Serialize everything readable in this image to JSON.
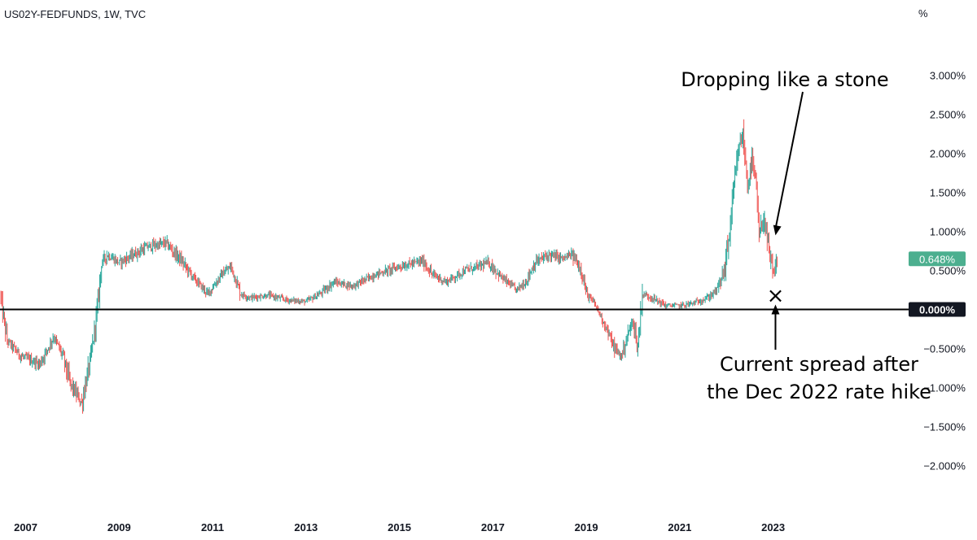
{
  "header": {
    "title": "US02Y-FEDFUNDS, 1W, TVC"
  },
  "chart_data": {
    "type": "candlestick",
    "title": "US02Y-FEDFUNDS, 1W, TVC",
    "unit_label": "%",
    "y_ticks": [
      3.0,
      2.5,
      2.0,
      1.5,
      1.0,
      0.5,
      -0.5,
      -1.0,
      -1.5,
      -2.0
    ],
    "y_tick_labels": [
      "3.000%",
      "2.500%",
      "2.000%",
      "1.500%",
      "1.000%",
      "0.500%",
      "−0.500%",
      "−1.000%",
      "−1.500%",
      "−2.000%"
    ],
    "x_ticks": [
      2007,
      2009,
      2011,
      2013,
      2015,
      2017,
      2019,
      2021,
      2023
    ],
    "x_tick_labels": [
      "2007",
      "2009",
      "2011",
      "2013",
      "2015",
      "2017",
      "2019",
      "2021",
      "2023"
    ],
    "x_range": [
      2006.45,
      2025.9
    ],
    "y_range": [
      -2.55,
      3.55
    ],
    "zero_line": {
      "value": 0.0,
      "label": "0.000%"
    },
    "last_value": {
      "value": 0.648,
      "label": "0.648%"
    },
    "colors": {
      "up": "#26a69a",
      "down": "#ef5350",
      "zero_label_bg": "#131722",
      "last_label_bg": "#4caf8f"
    },
    "series_trace": [
      [
        2006.45,
        0.2
      ],
      [
        2006.6,
        -0.4
      ],
      [
        2006.9,
        -0.6
      ],
      [
        2007.3,
        -0.7
      ],
      [
        2007.6,
        -0.35
      ],
      [
        2007.8,
        -0.6
      ],
      [
        2007.95,
        -0.95
      ],
      [
        2008.2,
        -1.2
      ],
      [
        2008.4,
        -0.6
      ],
      [
        2008.55,
        0.1
      ],
      [
        2008.62,
        0.6
      ],
      [
        2008.75,
        0.7
      ],
      [
        2009.0,
        0.6
      ],
      [
        2009.3,
        0.7
      ],
      [
        2009.6,
        0.8
      ],
      [
        2010.0,
        0.85
      ],
      [
        2010.3,
        0.65
      ],
      [
        2010.6,
        0.4
      ],
      [
        2010.9,
        0.2
      ],
      [
        2011.2,
        0.45
      ],
      [
        2011.4,
        0.55
      ],
      [
        2011.6,
        0.2
      ],
      [
        2011.8,
        0.15
      ],
      [
        2012.2,
        0.18
      ],
      [
        2012.6,
        0.12
      ],
      [
        2013.0,
        0.1
      ],
      [
        2013.3,
        0.2
      ],
      [
        2013.6,
        0.35
      ],
      [
        2014.0,
        0.3
      ],
      [
        2014.5,
        0.45
      ],
      [
        2015.0,
        0.55
      ],
      [
        2015.5,
        0.62
      ],
      [
        2015.7,
        0.45
      ],
      [
        2016.0,
        0.35
      ],
      [
        2016.4,
        0.5
      ],
      [
        2016.7,
        0.55
      ],
      [
        2016.9,
        0.6
      ],
      [
        2017.2,
        0.4
      ],
      [
        2017.5,
        0.25
      ],
      [
        2017.7,
        0.35
      ],
      [
        2017.9,
        0.6
      ],
      [
        2018.2,
        0.7
      ],
      [
        2018.5,
        0.65
      ],
      [
        2018.7,
        0.7
      ],
      [
        2018.9,
        0.5
      ],
      [
        2019.0,
        0.2
      ],
      [
        2019.2,
        0.05
      ],
      [
        2019.4,
        -0.2
      ],
      [
        2019.6,
        -0.5
      ],
      [
        2019.75,
        -0.6
      ],
      [
        2019.9,
        -0.3
      ],
      [
        2020.0,
        -0.15
      ],
      [
        2020.1,
        -0.5
      ],
      [
        2020.2,
        0.2
      ],
      [
        2020.4,
        0.15
      ],
      [
        2020.7,
        0.05
      ],
      [
        2021.0,
        0.05
      ],
      [
        2021.3,
        0.08
      ],
      [
        2021.6,
        0.15
      ],
      [
        2021.8,
        0.25
      ],
      [
        2021.95,
        0.5
      ],
      [
        2022.05,
        0.9
      ],
      [
        2022.15,
        1.5
      ],
      [
        2022.25,
        2.0
      ],
      [
        2022.35,
        2.25
      ],
      [
        2022.45,
        1.6
      ],
      [
        2022.55,
        1.9
      ],
      [
        2022.65,
        1.5
      ],
      [
        2022.7,
        0.9
      ],
      [
        2022.8,
        1.2
      ],
      [
        2022.9,
        0.75
      ],
      [
        2023.0,
        0.45
      ],
      [
        2023.1,
        0.648
      ]
    ],
    "annotations": [
      {
        "text": "Dropping like a stone",
        "arrow_to": [
          2023.05,
          0.95
        ]
      },
      {
        "text": "Current spread after the Dec 2022 rate hike",
        "line1": "Current spread after",
        "line2": "the Dec 2022 rate hike",
        "marker": "×",
        "marker_at": [
          2023.05,
          0.18
        ]
      }
    ]
  }
}
